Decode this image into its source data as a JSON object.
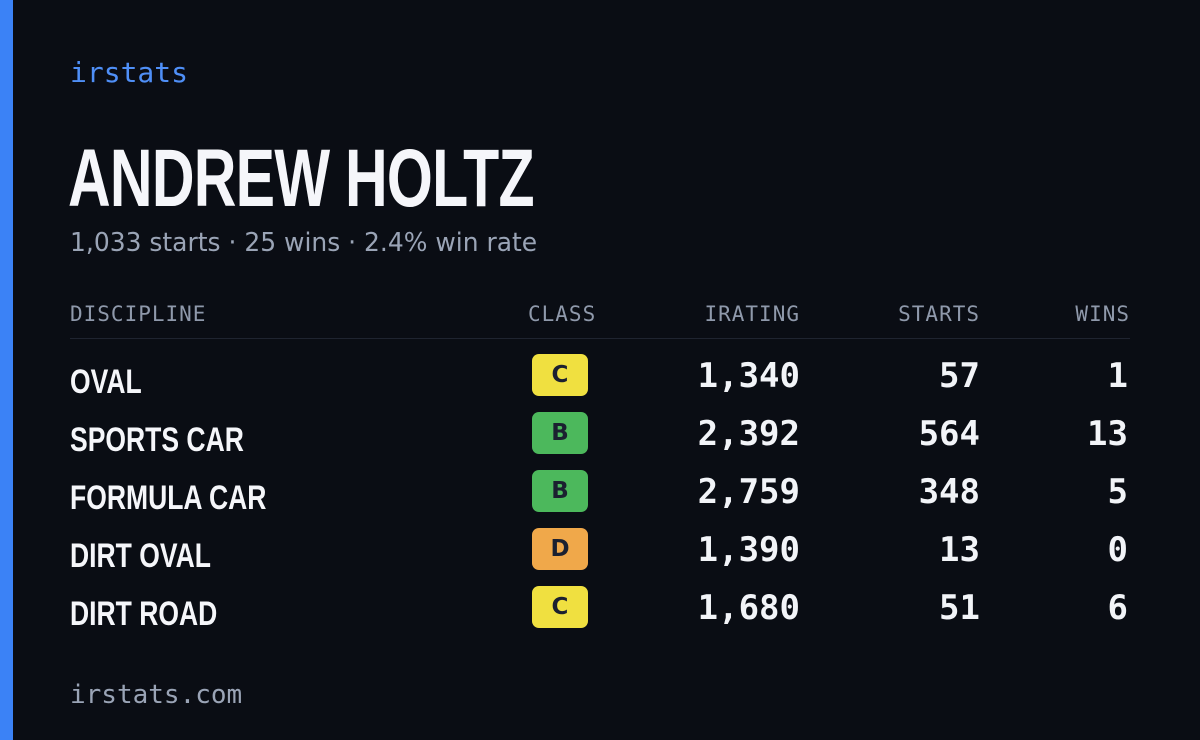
{
  "brand": "irstats",
  "driver": {
    "name": "ANDREW HOLTZ",
    "summary": "1,033 starts · 25 wins · 2.4% win rate"
  },
  "table": {
    "headers": {
      "discipline": "DISCIPLINE",
      "class": "CLASS",
      "irating": "IRATING",
      "starts": "STARTS",
      "wins": "WINS"
    },
    "rows": [
      {
        "discipline": "OVAL",
        "class": "C",
        "class_color": "#f0e040",
        "irating": "1,340",
        "starts": "57",
        "wins": "1"
      },
      {
        "discipline": "SPORTS CAR",
        "class": "B",
        "class_color": "#4cb85c",
        "irating": "2,392",
        "starts": "564",
        "wins": "13"
      },
      {
        "discipline": "FORMULA CAR",
        "class": "B",
        "class_color": "#4cb85c",
        "irating": "2,759",
        "starts": "348",
        "wins": "5"
      },
      {
        "discipline": "DIRT OVAL",
        "class": "D",
        "class_color": "#f0a84a",
        "irating": "1,390",
        "starts": "13",
        "wins": "0"
      },
      {
        "discipline": "DIRT ROAD",
        "class": "C",
        "class_color": "#f0e040",
        "irating": "1,680",
        "starts": "51",
        "wins": "6"
      }
    ]
  },
  "footer": "irstats.com",
  "colors": {
    "accent": "#3b82f6",
    "background": "#0a0d14"
  }
}
